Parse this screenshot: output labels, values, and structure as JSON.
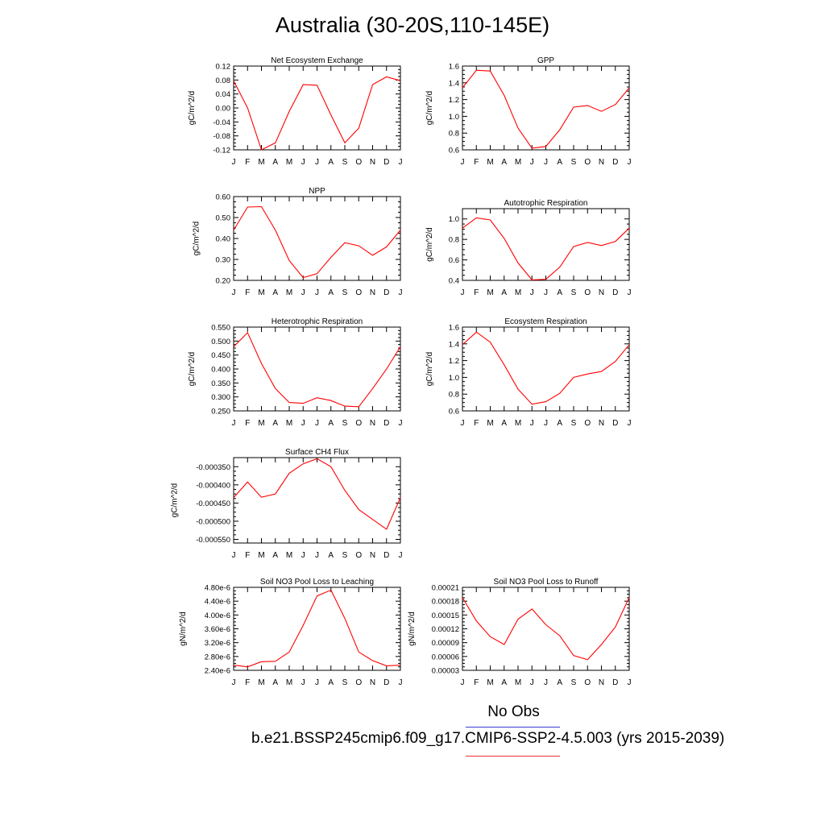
{
  "title": "Australia (30-20S,110-145E)",
  "legend": {
    "obs_label": "No Obs",
    "case_label": "b.e21.BSSP245cmip6.f09_g17.CMIP6-SSP2-4.5.003 (yrs 2015-2039)"
  },
  "colors": {
    "series": "#ff0000",
    "obs_line": "#3b3bd6",
    "case_line": "#e63232",
    "axis": "#000000"
  },
  "months": [
    "J",
    "F",
    "M",
    "A",
    "M",
    "J",
    "J",
    "A",
    "S",
    "O",
    "N",
    "D",
    "J"
  ],
  "chart_data": [
    {
      "type": "line",
      "title": "Net Ecosystem Exchange",
      "ylabel": "gC/m^2/d",
      "x": [
        "J",
        "F",
        "M",
        "A",
        "M",
        "J",
        "J",
        "A",
        "S",
        "O",
        "N",
        "D",
        "J"
      ],
      "ylim": [
        -0.12,
        0.12
      ],
      "yticks": [
        "0.12",
        "0.08",
        "0.04",
        "0.00",
        "-0.04",
        "-0.08",
        "-0.12"
      ],
      "values": [
        0.078,
        0.0,
        -0.12,
        -0.1,
        -0.01,
        0.067,
        0.065,
        -0.02,
        -0.1,
        -0.058,
        0.067,
        0.089,
        0.078
      ]
    },
    {
      "type": "line",
      "title": "GPP",
      "ylabel": "gC/m^2/d",
      "x": [
        "J",
        "F",
        "M",
        "A",
        "M",
        "J",
        "J",
        "A",
        "S",
        "O",
        "N",
        "D",
        "J"
      ],
      "ylim": [
        0.6,
        1.6
      ],
      "yticks": [
        "1.6",
        "1.4",
        "1.2",
        "1.0",
        "0.8",
        "0.6"
      ],
      "values": [
        1.34,
        1.55,
        1.54,
        1.25,
        0.86,
        0.62,
        0.64,
        0.84,
        1.11,
        1.13,
        1.06,
        1.14,
        1.34
      ]
    },
    {
      "type": "line",
      "title": "NPP",
      "ylabel": "gC/m^2/d",
      "x": [
        "J",
        "F",
        "M",
        "A",
        "M",
        "J",
        "J",
        "A",
        "S",
        "O",
        "N",
        "D",
        "J"
      ],
      "ylim": [
        0.2,
        0.6
      ],
      "yticks": [
        "0.60",
        "0.50",
        "0.40",
        "0.30",
        "0.20"
      ],
      "values": [
        0.44,
        0.55,
        0.552,
        0.44,
        0.295,
        0.213,
        0.232,
        0.31,
        0.38,
        0.365,
        0.32,
        0.36,
        0.44
      ]
    },
    {
      "type": "line",
      "title": "Autotrophic Respiration",
      "ylabel": "gC/m^2/d",
      "x": [
        "J",
        "F",
        "M",
        "A",
        "M",
        "J",
        "J",
        "A",
        "S",
        "O",
        "N",
        "D",
        "J"
      ],
      "ylim": [
        0.4,
        1.1
      ],
      "yticks": [
        "1.0",
        "0.8",
        "0.6",
        "0.4"
      ],
      "values": [
        0.91,
        1.01,
        0.99,
        0.81,
        0.57,
        0.405,
        0.41,
        0.53,
        0.73,
        0.77,
        0.74,
        0.78,
        0.91
      ]
    },
    {
      "type": "line",
      "title": "Heterotrophic Respiration",
      "ylabel": "gC/m^2/d",
      "x": [
        "J",
        "F",
        "M",
        "A",
        "M",
        "J",
        "J",
        "A",
        "S",
        "O",
        "N",
        "D",
        "J"
      ],
      "ylim": [
        0.25,
        0.55
      ],
      "yticks": [
        "0.550",
        "0.500",
        "0.450",
        "0.400",
        "0.350",
        "0.300",
        "0.250"
      ],
      "values": [
        0.48,
        0.53,
        0.42,
        0.33,
        0.28,
        0.277,
        0.297,
        0.287,
        0.267,
        0.265,
        0.33,
        0.4,
        0.48
      ]
    },
    {
      "type": "line",
      "title": "Ecosystem Respiration",
      "ylabel": "gC/m^2/d",
      "x": [
        "J",
        "F",
        "M",
        "A",
        "M",
        "J",
        "J",
        "A",
        "S",
        "O",
        "N",
        "D",
        "J"
      ],
      "ylim": [
        0.6,
        1.6
      ],
      "yticks": [
        "1.6",
        "1.4",
        "1.2",
        "1.0",
        "0.8",
        "0.6"
      ],
      "values": [
        1.39,
        1.54,
        1.42,
        1.15,
        0.86,
        0.68,
        0.71,
        0.81,
        1.0,
        1.04,
        1.07,
        1.19,
        1.39
      ]
    },
    {
      "type": "line",
      "title": "Surface CH4 Flux",
      "ylabel": "gC/m^2/d",
      "x": [
        "J",
        "F",
        "M",
        "A",
        "M",
        "J",
        "J",
        "A",
        "S",
        "O",
        "N",
        "D",
        "J"
      ],
      "ylim": [
        -0.00056,
        -0.000325
      ],
      "yticks": [
        "-0.000350",
        "-0.000400",
        "-0.000450",
        "-0.000500",
        "-0.000550"
      ],
      "values": [
        -0.000435,
        -0.000392,
        -0.000434,
        -0.000425,
        -0.000368,
        -0.000342,
        -0.000328,
        -0.00035,
        -0.000415,
        -0.000468,
        -0.000495,
        -0.000522,
        -0.000435
      ]
    },
    {
      "type": "line",
      "title": "Soil NO3 Pool Loss to Leaching",
      "ylabel": "gN/m^2/d",
      "x": [
        "J",
        "F",
        "M",
        "A",
        "M",
        "J",
        "J",
        "A",
        "S",
        "O",
        "N",
        "D",
        "J"
      ],
      "ylim": [
        2.4e-06,
        4.8e-06
      ],
      "yticks": [
        "4.80e-6",
        "4.40e-6",
        "4.00e-6",
        "3.60e-6",
        "3.20e-6",
        "2.80e-6",
        "2.40e-6"
      ],
      "values": [
        2.55e-06,
        2.5e-06,
        2.65e-06,
        2.66e-06,
        2.93e-06,
        3.7e-06,
        4.55e-06,
        4.72e-06,
        3.9e-06,
        2.93e-06,
        2.68e-06,
        2.53e-06,
        2.55e-06
      ]
    },
    {
      "type": "line",
      "title": "Soil NO3 Pool Loss to Runoff",
      "ylabel": "gN/m^2/d",
      "x": [
        "J",
        "F",
        "M",
        "A",
        "M",
        "J",
        "J",
        "A",
        "S",
        "O",
        "N",
        "D",
        "J"
      ],
      "ylim": [
        3e-05,
        0.00021
      ],
      "yticks": [
        "0.00021",
        "0.00018",
        "0.00015",
        "0.00012",
        "0.00009",
        "0.00006",
        "0.00003"
      ],
      "values": [
        0.000188,
        0.000137,
        0.000103,
        8.6e-05,
        0.000141,
        0.000163,
        0.000129,
        0.000105,
        6.2e-05,
        5.3e-05,
        8.6e-05,
        0.000124,
        0.000188
      ]
    }
  ]
}
